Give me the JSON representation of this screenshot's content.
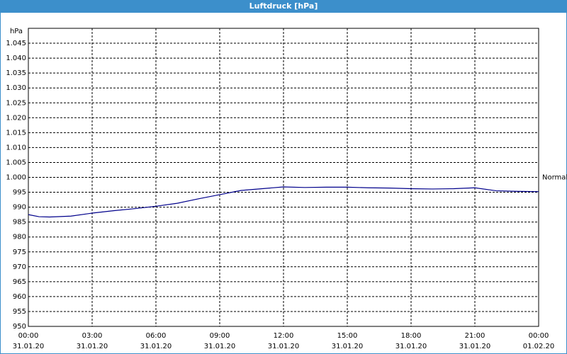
{
  "chart_data": {
    "type": "line",
    "title": "Luftdruck [hPa]",
    "y_label": "hPa",
    "xlim": [
      0,
      24
    ],
    "xticks": [
      {
        "value": 0,
        "label": "00:00",
        "date": "31.01.20"
      },
      {
        "value": 3,
        "label": "03:00",
        "date": "31.01.20"
      },
      {
        "value": 6,
        "label": "06:00",
        "date": "31.01.20"
      },
      {
        "value": 9,
        "label": "09:00",
        "date": "31.01.20"
      },
      {
        "value": 12,
        "label": "12:00",
        "date": "31.01.20"
      },
      {
        "value": 15,
        "label": "15:00",
        "date": "31.01.20"
      },
      {
        "value": 18,
        "label": "18:00",
        "date": "31.01.20"
      },
      {
        "value": 21,
        "label": "21:00",
        "date": "31.01.20"
      },
      {
        "value": 24,
        "label": "00:00",
        "date": "01.02.20"
      }
    ],
    "ylim": [
      950,
      1050
    ],
    "yticks": [
      950,
      955,
      960,
      965,
      970,
      975,
      980,
      985,
      990,
      995,
      {
        "value": 1000,
        "label": "1.000"
      },
      {
        "value": 1005,
        "label": "1.005"
      },
      {
        "value": 1010,
        "label": "1.010"
      },
      {
        "value": 1015,
        "label": "1.015"
      },
      {
        "value": 1020,
        "label": "1.020"
      },
      {
        "value": 1025,
        "label": "1.025"
      },
      {
        "value": 1030,
        "label": "1.030"
      },
      {
        "value": 1035,
        "label": "1.035"
      },
      {
        "value": 1040,
        "label": "1.040"
      },
      {
        "value": 1045,
        "label": "1.045"
      }
    ],
    "grid": true,
    "x": [
      0,
      0.5,
      1,
      2,
      3,
      4,
      5,
      6,
      7,
      8,
      9,
      10,
      11,
      12,
      13,
      14,
      15,
      16,
      17,
      18,
      19,
      20,
      21,
      22,
      23,
      24
    ],
    "series": [
      {
        "name": "Normal",
        "color": "#00008b",
        "values": [
          987.5,
          986.8,
          986.7,
          987,
          988,
          988.8,
          989.5,
          990.3,
          991.3,
          992.8,
          994.2,
          995.6,
          996.2,
          996.8,
          996.6,
          996.7,
          996.7,
          996.5,
          996.4,
          996.2,
          996.1,
          996.2,
          996.5,
          995.5,
          995.3,
          995.2
        ]
      }
    ]
  }
}
